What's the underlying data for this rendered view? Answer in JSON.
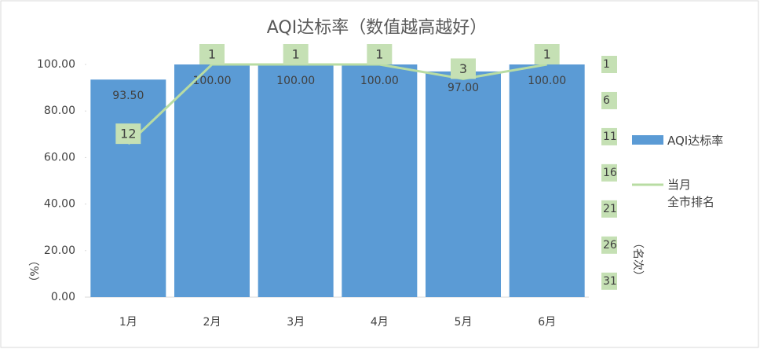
{
  "chart_data": {
    "type": "bar_line",
    "title": "AQI达标率（数值越高越好）",
    "categories": [
      "1月",
      "2月",
      "3月",
      "4月",
      "5月",
      "6月"
    ],
    "series": [
      {
        "name": "AQI达标率",
        "type": "bar",
        "color": "#5b9bd5",
        "values": [
          93.5,
          100,
          100,
          100,
          97,
          100
        ],
        "value_labels": [
          "93.50",
          "100.00",
          "100.00",
          "100.00",
          "97.00",
          "100.00"
        ]
      },
      {
        "name": "当月\n全市排名",
        "type": "line",
        "axis": "y2",
        "color": "#b8dca3",
        "values": [
          12,
          1,
          1,
          1,
          3,
          1
        ]
      }
    ],
    "ylim": [
      0,
      100
    ],
    "yticks": [
      {
        "value": 0,
        "label": "0.00"
      },
      {
        "value": 20,
        "label": "20.00"
      },
      {
        "value": 40,
        "label": "40.00"
      },
      {
        "value": 60,
        "label": "60.00"
      },
      {
        "value": 80,
        "label": "80.00"
      },
      {
        "value": 100,
        "label": "100.00"
      }
    ],
    "y2lim": [
      1,
      33.2
    ],
    "y2_reversed": true,
    "y2ticks": [
      1,
      6,
      11,
      16,
      21,
      26,
      31
    ],
    "ylabel": "（%）",
    "y2label": "（名次）",
    "legend": "right"
  }
}
